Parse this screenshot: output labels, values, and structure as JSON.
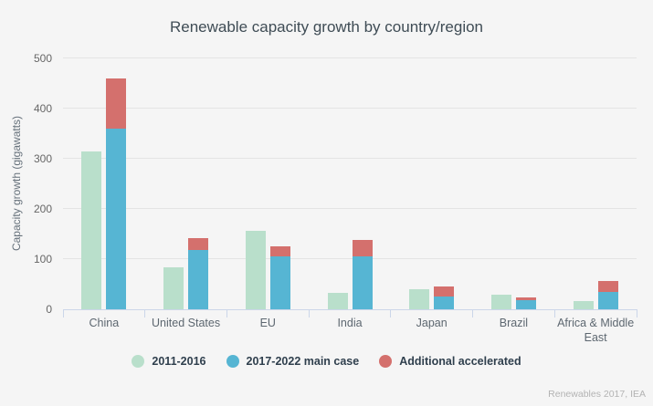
{
  "source_credit": "Renewables 2017, IEA",
  "chart_data": {
    "type": "bar",
    "title": "Renewable capacity growth by country/region",
    "xlabel": "",
    "ylabel": "Capacity growth (gigawatts)",
    "ylim": [
      0,
      500
    ],
    "ytick_step": 100,
    "grid": true,
    "legend_position": "bottom",
    "categories": [
      "China",
      "United States",
      "EU",
      "India",
      "Japan",
      "Brazil",
      "Africa & Middle East"
    ],
    "series": [
      {
        "name": "2011-2016",
        "color": "#b9dfcb",
        "bar": "left",
        "values": [
          315,
          84,
          157,
          32,
          40,
          29,
          16
        ]
      },
      {
        "name": "2017-2022 main case",
        "color": "#56b5d3",
        "bar": "right-stack-bottom",
        "values": [
          360,
          119,
          105,
          105,
          25,
          18,
          35
        ]
      },
      {
        "name": "Additional accelerated",
        "color": "#d4706d",
        "bar": "right-stack-top",
        "values": [
          100,
          23,
          20,
          34,
          20,
          5,
          22
        ]
      }
    ],
    "layout_hints": {
      "bars_per_category": "left bar = series 0; right bar = series 1 with series 2 stacked on top",
      "background": "#f5f5f5",
      "gridline_color": "#e4e4e4",
      "axis_line_color": "#cbd6e9"
    }
  }
}
